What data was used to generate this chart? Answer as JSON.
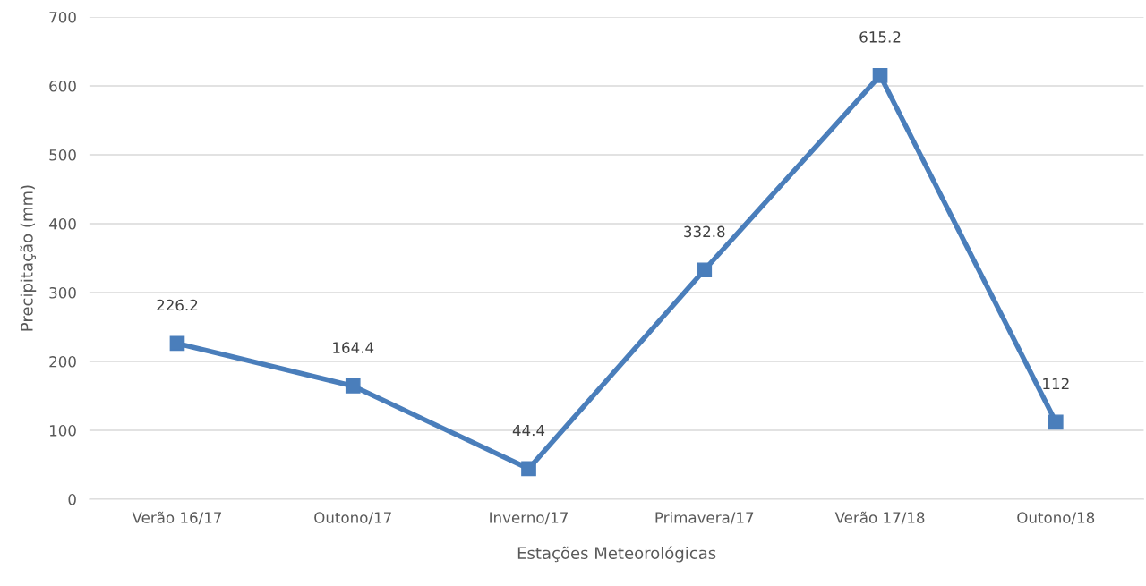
{
  "chart_data": {
    "type": "line",
    "xlabel": "Estações Meteorológicas",
    "ylabel": "Precipitação (mm)",
    "categories": [
      "Verão 16/17",
      "Outono/17",
      "Inverno/17",
      "Primavera/17",
      "Verão 17/18",
      "Outono/18"
    ],
    "series": [
      {
        "color": "#4a7ebb",
        "values": [
          226.2,
          164.4,
          44.4,
          332.8,
          615.2,
          112
        ]
      }
    ],
    "ylim": [
      0,
      700
    ],
    "yticks": [
      0,
      100,
      200,
      300,
      400,
      500,
      600,
      700
    ],
    "grid": "y",
    "marker": "square",
    "line_style": "solid",
    "data_labels": true
  }
}
